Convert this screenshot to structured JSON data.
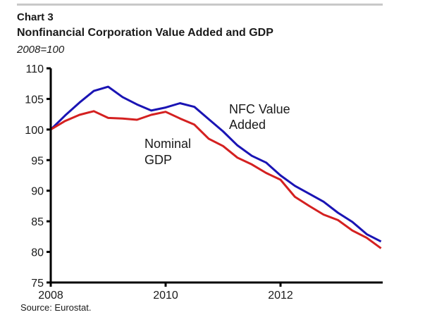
{
  "chart_data": {
    "type": "line",
    "label": "Chart 3",
    "title": "Nonfinancial Corporation Value Added and GDP",
    "subtitle": "2008=100",
    "source": "Source: Eurostat.",
    "xlabel": "",
    "ylabel": "",
    "xlim": [
      2008,
      2014
    ],
    "ylim": [
      75,
      110
    ],
    "yticks": [
      75,
      80,
      85,
      90,
      95,
      100,
      105,
      110
    ],
    "xticks": [
      2008,
      2010,
      2012
    ],
    "xtick_labels": [
      "2008",
      "2010",
      "2012"
    ],
    "ytick_labels": [
      "75",
      "80",
      "85",
      "90",
      "95",
      "100",
      "105",
      "110"
    ],
    "grid": false,
    "x": [
      2008.0,
      2008.25,
      2008.5,
      2008.75,
      2009.0,
      2009.25,
      2009.5,
      2009.75,
      2010.0,
      2010.25,
      2010.5,
      2010.75,
      2011.0,
      2011.25,
      2011.5,
      2011.75,
      2012.0,
      2012.25,
      2012.5,
      2012.75,
      2013.0,
      2013.25,
      2013.5,
      2013.75
    ],
    "series": [
      {
        "name": "NFC Value Added",
        "color": "#1a14b4",
        "annotation": [
          "NFC Value",
          "Added"
        ],
        "values": [
          100,
          102.3,
          104.4,
          106.3,
          107.0,
          105.3,
          104.1,
          103.1,
          103.6,
          104.3,
          103.7,
          101.7,
          99.7,
          97.4,
          95.7,
          94.6,
          92.5,
          90.8,
          89.5,
          88.2,
          86.4,
          84.9,
          82.9,
          81.7
        ]
      },
      {
        "name": "Nominal GDP",
        "color": "#d42020",
        "annotation": [
          "Nominal",
          "GDP"
        ],
        "values": [
          100,
          101.4,
          102.4,
          103.0,
          101.9,
          101.8,
          101.6,
          102.4,
          102.9,
          101.8,
          100.8,
          98.5,
          97.3,
          95.4,
          94.3,
          92.9,
          91.8,
          89.0,
          87.5,
          86.1,
          85.2,
          83.5,
          82.3,
          80.6
        ]
      }
    ]
  }
}
